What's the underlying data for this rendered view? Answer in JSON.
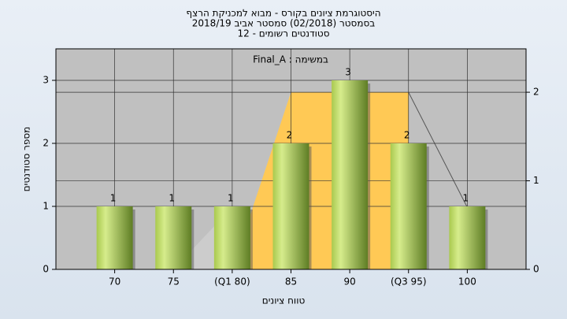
{
  "chart_data": {
    "type": "bar",
    "title": "היסטוגרמת ציונים בקורס - מבוא למכניקת הרצף",
    "subtitle": "בסמסטר (02/2018) סמסטר אביב 2018/19",
    "subtitle2": "סטודנטים רשומים - 12",
    "annotation": "במשימה : Final_A",
    "xlabel": "טווח ציונים",
    "ylabel": "מספר סטודנטים",
    "categories": [
      "70",
      "75",
      "(Q1 80)",
      "85",
      "90",
      "(Q3 95)",
      "100"
    ],
    "values": [
      1,
      1,
      1,
      2,
      3,
      2,
      1
    ],
    "ylim": [
      0,
      3.5
    ],
    "yticks": [
      0,
      1,
      2,
      3
    ],
    "y2lim": [
      0,
      2.49
    ],
    "y2ticks": [
      0,
      1,
      2
    ],
    "series": [
      {
        "values": [
          null,
          null,
          0,
          2,
          2,
          2,
          null
        ],
        "color": "#ffc955",
        "axis": "y2"
      },
      {
        "values": [
          null,
          0,
          0.7,
          null,
          null,
          null,
          null
        ],
        "color": "#cccccc",
        "axis": "y2"
      },
      {
        "values": [
          null,
          null,
          null,
          null,
          null,
          2,
          0.7
        ],
        "color": "#555555",
        "axis": "y2"
      }
    ],
    "grid": true
  }
}
